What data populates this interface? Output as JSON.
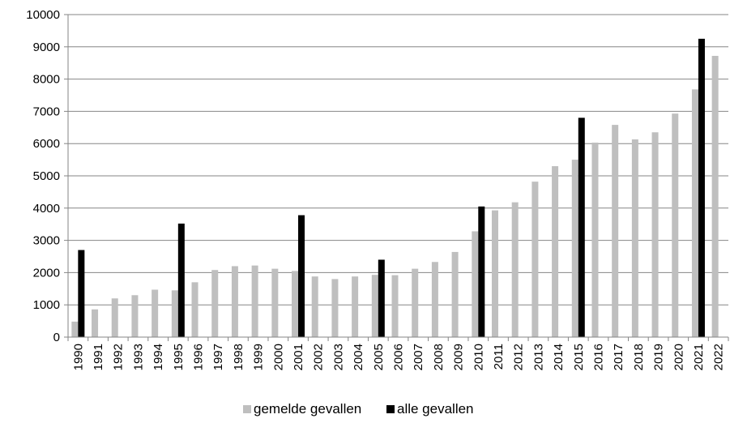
{
  "chart_data": {
    "type": "bar",
    "categories": [
      "1990",
      "1991",
      "1992",
      "1993",
      "1994",
      "1995",
      "1996",
      "1997",
      "1998",
      "1999",
      "2000",
      "2001",
      "2002",
      "2003",
      "2004",
      "2005",
      "2006",
      "2007",
      "2008",
      "2009",
      "2010",
      "2011",
      "2012",
      "2013",
      "2014",
      "2015",
      "2016",
      "2017",
      "2018",
      "2019",
      "2020",
      "2021",
      "2022"
    ],
    "series": [
      {
        "name": "gemelde gevallen",
        "color": "#bfbfbf",
        "values": [
          480,
          860,
          1200,
          1300,
          1470,
          1450,
          1700,
          2080,
          2200,
          2220,
          2120,
          2050,
          1880,
          1800,
          1880,
          1930,
          1920,
          2120,
          2330,
          2640,
          3280,
          3930,
          4180,
          4820,
          5300,
          5500,
          6030,
          6580,
          6130,
          6350,
          6930,
          7680,
          8720
        ]
      },
      {
        "name": "alle gevallen",
        "color": "#000000",
        "values": [
          2700,
          null,
          null,
          null,
          null,
          3520,
          null,
          null,
          null,
          null,
          null,
          3780,
          null,
          null,
          null,
          2400,
          null,
          null,
          null,
          null,
          4050,
          null,
          null,
          null,
          null,
          6800,
          null,
          null,
          null,
          null,
          null,
          9250,
          null
        ]
      }
    ],
    "title": "",
    "xlabel": "",
    "ylabel": "",
    "ylim": [
      0,
      10000
    ],
    "yticks": [
      "0",
      "1000",
      "2000",
      "3000",
      "4000",
      "5000",
      "6000",
      "7000",
      "8000",
      "9000",
      "10000"
    ],
    "grid": true,
    "legend_position": "bottom"
  }
}
